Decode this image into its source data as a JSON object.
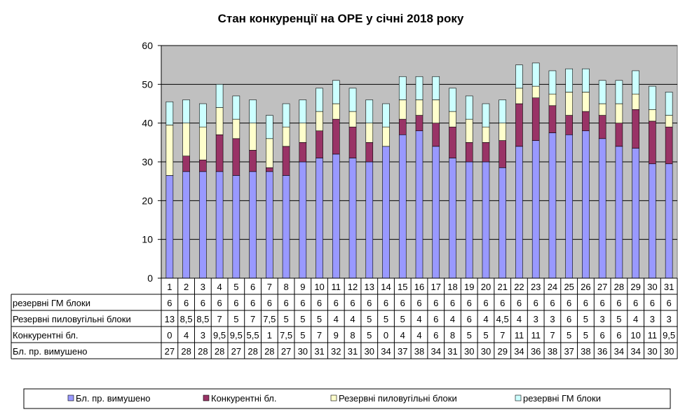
{
  "colors": {
    "forced": "#9999FF",
    "competitive": "#993366",
    "coal_reserve": "#FFFFCC",
    "gm_reserve": "#CCFFFF",
    "plot_bg": "#C0C0C0"
  },
  "chart_data": {
    "type": "bar",
    "stacked": true,
    "title": "Стан конкуренції на ОРЕ  у січні 2018 року",
    "xlabel": "",
    "ylabel": "",
    "ylim": [
      0,
      60
    ],
    "yticks": [
      "0",
      "10",
      "20",
      "30",
      "40",
      "50",
      "60"
    ],
    "grid": true,
    "legend_position": "bottom",
    "categories": [
      "1",
      "2",
      "3",
      "4",
      "5",
      "6",
      "7",
      "8",
      "9",
      "10",
      "11",
      "12",
      "13",
      "14",
      "15",
      "16",
      "17",
      "18",
      "19",
      "20",
      "21",
      "22",
      "23",
      "24",
      "25",
      "26",
      "27",
      "28",
      "29",
      "30",
      "31"
    ],
    "series": [
      {
        "name": "Бл. пр. вимушено",
        "color_key": "forced",
        "values": [
          26.5,
          27.5,
          27.5,
          27.5,
          26.5,
          27.5,
          27.5,
          26.5,
          30,
          31,
          32,
          31,
          30,
          34,
          37,
          38,
          34,
          31,
          30,
          30,
          28.5,
          34,
          35.5,
          37.5,
          37,
          38,
          36,
          34,
          33.5,
          29.5,
          29.5
        ],
        "labels": [
          "27",
          "28",
          "28",
          "28",
          "27",
          "28",
          "28",
          "27",
          "30",
          "31",
          "32",
          "31",
          "30",
          "34",
          "37",
          "38",
          "34",
          "31",
          "30",
          "30",
          "29",
          "34",
          "36",
          "38",
          "37",
          "38",
          "36",
          "34",
          "34",
          "30",
          "30"
        ]
      },
      {
        "name": "Конкурентні  бл.",
        "color_key": "competitive",
        "values": [
          0,
          4,
          3,
          9.5,
          9.5,
          5.5,
          1,
          7.5,
          5,
          7,
          9,
          8,
          5,
          0,
          4,
          4,
          6,
          8,
          5,
          5,
          7,
          11,
          11,
          7,
          5,
          5,
          6,
          6,
          10,
          11,
          9.5
        ],
        "labels": [
          "0",
          "4",
          "3",
          "9,5",
          "9,5",
          "5,5",
          "1",
          "7,5",
          "5",
          "7",
          "9",
          "8",
          "5",
          "0",
          "4",
          "4",
          "6",
          "8",
          "5",
          "5",
          "7",
          "11",
          "11",
          "7",
          "5",
          "5",
          "6",
          "6",
          "10",
          "11",
          "9,5"
        ]
      },
      {
        "name": "Резервні пиловугільні  блоки",
        "color_key": "coal_reserve",
        "values": [
          13,
          8.5,
          8.5,
          7,
          5,
          7,
          7.5,
          5,
          5,
          5,
          4,
          4,
          5,
          5,
          5,
          4,
          6,
          4,
          6,
          4,
          4.5,
          4,
          3,
          3,
          6,
          5,
          3,
          5,
          4,
          3,
          3
        ],
        "labels": [
          "13",
          "8,5",
          "8,5",
          "7",
          "5",
          "7",
          "7,5",
          "5",
          "5",
          "5",
          "4",
          "4",
          "5",
          "5",
          "5",
          "4",
          "6",
          "4",
          "6",
          "4",
          "4,5",
          "4",
          "3",
          "3",
          "6",
          "5",
          "3",
          "5",
          "4",
          "3",
          "3"
        ]
      },
      {
        "name": "резервні ГМ блоки",
        "color_key": "gm_reserve",
        "values": [
          6,
          6,
          6,
          6,
          6,
          6,
          6,
          6,
          6,
          6,
          6,
          6,
          6,
          6,
          6,
          6,
          6,
          6,
          6,
          6,
          6,
          6,
          6,
          6,
          6,
          6,
          6,
          6,
          6,
          6,
          6
        ],
        "labels": [
          "6",
          "6",
          "6",
          "6",
          "6",
          "6",
          "6",
          "6",
          "6",
          "6",
          "6",
          "6",
          "6",
          "6",
          "6",
          "6",
          "6",
          "6",
          "6",
          "6",
          "6",
          "6",
          "6",
          "6",
          "6",
          "6",
          "6",
          "6",
          "6",
          "6",
          "6"
        ]
      }
    ],
    "table_row_order": [
      3,
      2,
      1,
      0
    ],
    "legend_order": [
      0,
      1,
      2,
      3
    ]
  }
}
